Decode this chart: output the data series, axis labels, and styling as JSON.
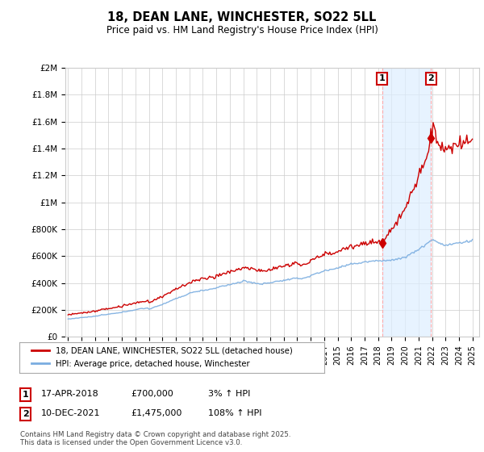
{
  "title": "18, DEAN LANE, WINCHESTER, SO22 5LL",
  "subtitle": "Price paid vs. HM Land Registry's House Price Index (HPI)",
  "yticks": [
    0,
    200000,
    400000,
    600000,
    800000,
    1000000,
    1200000,
    1400000,
    1600000,
    1800000,
    2000000
  ],
  "ytick_labels": [
    "£0",
    "£200K",
    "£400K",
    "£600K",
    "£800K",
    "£1M",
    "£1.2M",
    "£1.4M",
    "£1.6M",
    "£1.8M",
    "£2M"
  ],
  "line1_color": "#cc0000",
  "line2_color": "#7aade0",
  "line1_label": "18, DEAN LANE, WINCHESTER, SO22 5LL (detached house)",
  "line2_label": "HPI: Average price, detached house, Winchester",
  "sale1_year": 2018.29,
  "sale1_price": 700000,
  "sale2_year": 2021.92,
  "sale2_price": 1475000,
  "footer": "Contains HM Land Registry data © Crown copyright and database right 2025.\nThis data is licensed under the Open Government Licence v3.0.",
  "background_color": "#ffffff",
  "grid_color": "#cccccc",
  "vline_color": "#ffaaaa",
  "shade_color": "#ddeeff"
}
